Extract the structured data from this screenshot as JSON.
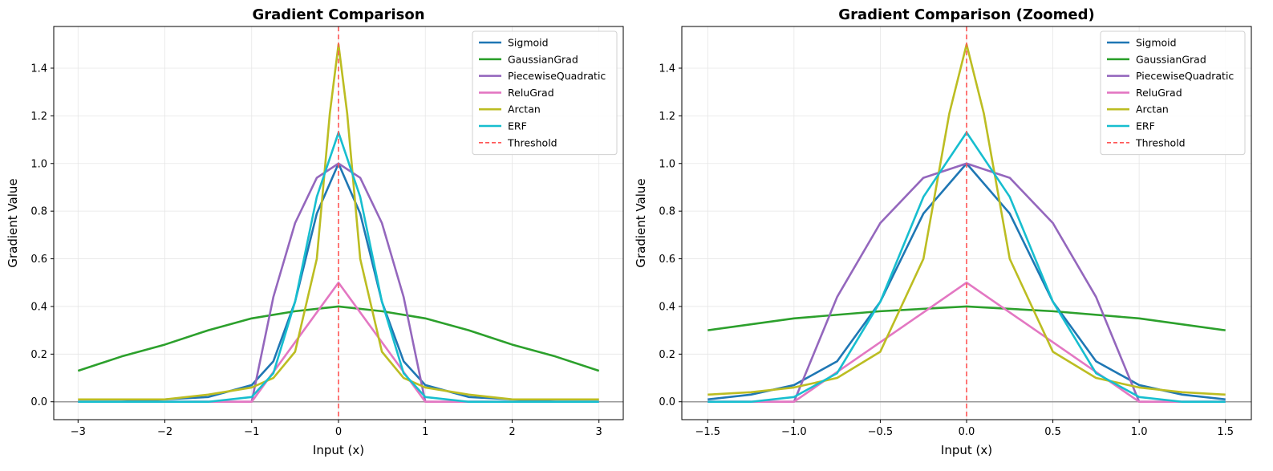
{
  "chart_data": [
    {
      "type": "line",
      "title": "Gradient Comparison",
      "xlabel": "Input (x)",
      "ylabel": "Gradient Value",
      "xlim": [
        -3.28,
        3.28
      ],
      "ylim": [
        -0.075,
        1.575
      ],
      "xticks": [
        -3,
        -2,
        -1,
        0,
        1,
        2,
        3
      ],
      "xtick_labels": [
        "−3",
        "−2",
        "−1",
        "0",
        "1",
        "2",
        "3"
      ],
      "yticks": [
        0.0,
        0.2,
        0.4,
        0.6,
        0.8,
        1.0,
        1.2,
        1.4
      ],
      "ytick_labels": [
        "0.0",
        "0.2",
        "0.4",
        "0.6",
        "0.8",
        "1.0",
        "1.2",
        "1.4"
      ],
      "grid": true,
      "legend_position": "top-right",
      "x_range": [
        -3,
        3
      ],
      "series": [
        {
          "name": "Sigmoid",
          "color": "#1f77b4",
          "x": [
            -3,
            -2.5,
            -2,
            -1.5,
            -1,
            -0.75,
            -0.5,
            -0.25,
            0,
            0.25,
            0.5,
            0.75,
            1,
            1.5,
            2,
            2.5,
            3
          ],
          "y": [
            0.0,
            0.0,
            0.01,
            0.02,
            0.07,
            0.17,
            0.42,
            0.79,
            1.0,
            0.79,
            0.42,
            0.17,
            0.07,
            0.02,
            0.01,
            0.0,
            0.0
          ]
        },
        {
          "name": "GaussianGrad",
          "color": "#2ca02c",
          "x": [
            -3,
            -2.5,
            -2,
            -1.5,
            -1,
            -0.5,
            0,
            0.5,
            1,
            1.5,
            2,
            2.5,
            3
          ],
          "y": [
            0.13,
            0.19,
            0.24,
            0.3,
            0.35,
            0.38,
            0.4,
            0.38,
            0.35,
            0.3,
            0.24,
            0.19,
            0.13
          ]
        },
        {
          "name": "PiecewiseQuadratic",
          "color": "#9467bd",
          "x": [
            -3,
            -1,
            -0.75,
            -0.5,
            -0.25,
            0,
            0.25,
            0.5,
            0.75,
            1,
            3
          ],
          "y": [
            0.0,
            0.0,
            0.44,
            0.75,
            0.94,
            1.0,
            0.94,
            0.75,
            0.44,
            0.0,
            0.0
          ]
        },
        {
          "name": "ReluGrad",
          "color": "#e377c2",
          "x": [
            -3,
            -1,
            0,
            1,
            3
          ],
          "y": [
            0.0,
            0.0,
            0.5,
            0.0,
            0.0
          ]
        },
        {
          "name": "Arctan",
          "color": "#bcbd22",
          "x": [
            -3,
            -2,
            -1.5,
            -1,
            -0.75,
            -0.5,
            -0.25,
            -0.1,
            0,
            0.1,
            0.25,
            0.5,
            0.75,
            1,
            1.5,
            2,
            3
          ],
          "y": [
            0.01,
            0.01,
            0.03,
            0.06,
            0.1,
            0.21,
            0.6,
            1.21,
            1.5,
            1.21,
            0.6,
            0.21,
            0.1,
            0.06,
            0.03,
            0.01,
            0.01
          ]
        },
        {
          "name": "ERF",
          "color": "#17becf",
          "x": [
            -3,
            -1.5,
            -1,
            -0.75,
            -0.5,
            -0.25,
            0,
            0.25,
            0.5,
            0.75,
            1,
            1.5,
            3
          ],
          "y": [
            0.0,
            0.0,
            0.02,
            0.12,
            0.42,
            0.86,
            1.13,
            0.86,
            0.42,
            0.12,
            0.02,
            0.0,
            0.0
          ]
        }
      ],
      "threshold": {
        "name": "Threshold",
        "x": 0,
        "color": "#ff5555"
      },
      "baseline_y": 0
    },
    {
      "type": "line",
      "title": "Gradient Comparison (Zoomed)",
      "xlabel": "Input (x)",
      "ylabel": "Gradient Value",
      "xlim": [
        -1.65,
        1.65
      ],
      "ylim": [
        -0.075,
        1.575
      ],
      "xticks": [
        -1.5,
        -1.0,
        -0.5,
        0.0,
        0.5,
        1.0,
        1.5
      ],
      "xtick_labels": [
        "−1.5",
        "−1.0",
        "−0.5",
        "0.0",
        "0.5",
        "1.0",
        "1.5"
      ],
      "yticks": [
        0.0,
        0.2,
        0.4,
        0.6,
        0.8,
        1.0,
        1.2,
        1.4
      ],
      "ytick_labels": [
        "0.0",
        "0.2",
        "0.4",
        "0.6",
        "0.8",
        "1.0",
        "1.2",
        "1.4"
      ],
      "grid": true,
      "legend_position": "top-right",
      "x_range": [
        -1.5,
        1.5
      ],
      "series": [
        {
          "name": "Sigmoid",
          "color": "#1f77b4",
          "x": [
            -1.5,
            -1.25,
            -1,
            -0.75,
            -0.5,
            -0.25,
            0,
            0.25,
            0.5,
            0.75,
            1,
            1.25,
            1.5
          ],
          "y": [
            0.01,
            0.03,
            0.07,
            0.17,
            0.42,
            0.79,
            1.0,
            0.79,
            0.42,
            0.17,
            0.07,
            0.03,
            0.01
          ]
        },
        {
          "name": "GaussianGrad",
          "color": "#2ca02c",
          "x": [
            -1.5,
            -1,
            -0.5,
            0,
            0.5,
            1,
            1.5
          ],
          "y": [
            0.3,
            0.35,
            0.38,
            0.4,
            0.38,
            0.35,
            0.3
          ]
        },
        {
          "name": "PiecewiseQuadratic",
          "color": "#9467bd",
          "x": [
            -1.5,
            -1,
            -0.75,
            -0.5,
            -0.25,
            0,
            0.25,
            0.5,
            0.75,
            1,
            1.5
          ],
          "y": [
            0.0,
            0.0,
            0.44,
            0.75,
            0.94,
            1.0,
            0.94,
            0.75,
            0.44,
            0.0,
            0.0
          ]
        },
        {
          "name": "ReluGrad",
          "color": "#e377c2",
          "x": [
            -1.5,
            -1,
            0,
            1,
            1.5
          ],
          "y": [
            0.0,
            0.0,
            0.5,
            0.0,
            0.0
          ]
        },
        {
          "name": "Arctan",
          "color": "#bcbd22",
          "x": [
            -1.5,
            -1.25,
            -1,
            -0.75,
            -0.5,
            -0.25,
            -0.1,
            0,
            0.1,
            0.25,
            0.5,
            0.75,
            1,
            1.25,
            1.5
          ],
          "y": [
            0.03,
            0.04,
            0.06,
            0.1,
            0.21,
            0.6,
            1.21,
            1.5,
            1.21,
            0.6,
            0.21,
            0.1,
            0.06,
            0.04,
            0.03
          ]
        },
        {
          "name": "ERF",
          "color": "#17becf",
          "x": [
            -1.5,
            -1.25,
            -1,
            -0.75,
            -0.5,
            -0.25,
            0,
            0.25,
            0.5,
            0.75,
            1,
            1.25,
            1.5
          ],
          "y": [
            0.0,
            0.0,
            0.02,
            0.12,
            0.42,
            0.86,
            1.13,
            0.86,
            0.42,
            0.12,
            0.02,
            0.0,
            0.0
          ]
        }
      ],
      "threshold": {
        "name": "Threshold",
        "x": 0,
        "color": "#ff5555"
      },
      "baseline_y": 0
    }
  ]
}
